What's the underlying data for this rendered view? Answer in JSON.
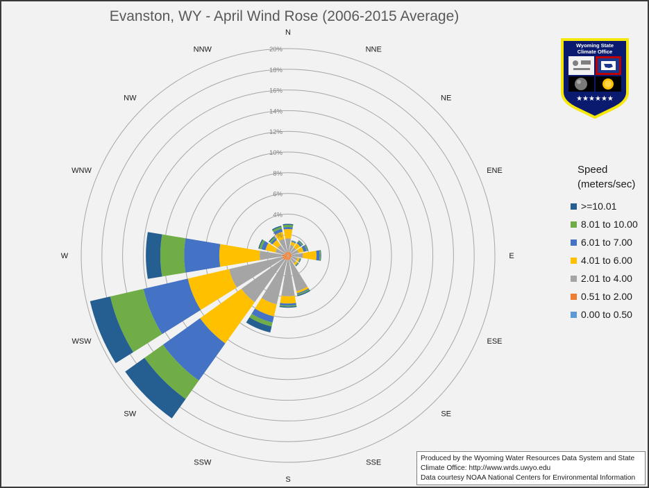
{
  "chart_data": {
    "type": "wind-rose",
    "title": "Evanston, WY - April Wind Rose (2006-2015 Average)",
    "directions": [
      "N",
      "NNE",
      "NE",
      "ENE",
      "E",
      "ESE",
      "SE",
      "SSE",
      "S",
      "SSW",
      "SW",
      "WSW",
      "W",
      "WNW",
      "NW",
      "NNW"
    ],
    "radial_ticks": [
      "0%",
      "2%",
      "4%",
      "6%",
      "8%",
      "10%",
      "12%",
      "14%",
      "16%",
      "18%",
      "20%"
    ],
    "rmax_percent": 20,
    "grid": true,
    "legend_position": "right",
    "legend_title": [
      "Speed",
      "(meters/sec)"
    ],
    "series": [
      {
        "name": "0.00 to 0.50",
        "color": "#5b9bd5",
        "values": [
          0.05,
          0.05,
          0.05,
          0.05,
          0.05,
          0.05,
          0.05,
          0.05,
          0.05,
          0.05,
          0.05,
          0.05,
          0.05,
          0.05,
          0.05,
          0.05
        ]
      },
      {
        "name": "0.51 to 2.00",
        "color": "#ed7d31",
        "values": [
          0.3,
          0.3,
          0.3,
          0.3,
          0.3,
          0.3,
          0.3,
          0.4,
          0.4,
          0.4,
          0.5,
          0.5,
          0.5,
          0.3,
          0.3,
          0.3
        ]
      },
      {
        "name": "2.01 to 4.00",
        "color": "#a5a5a5",
        "values": [
          1.3,
          0.7,
          0.6,
          0.7,
          1.1,
          0.6,
          0.6,
          3.1,
          3.5,
          4.4,
          5.0,
          5.3,
          2.2,
          0.9,
          0.9,
          1.3
        ]
      },
      {
        "name": "4.01 to 6.00",
        "color": "#ffc000",
        "values": [
          0.9,
          0.3,
          0.5,
          0.5,
          1.3,
          0.2,
          0.2,
          0.2,
          0.7,
          1.2,
          4.9,
          4.1,
          3.9,
          1.0,
          0.6,
          0.7
        ]
      },
      {
        "name": "6.01 to 7.00",
        "color": "#4472c4",
        "values": [
          0.2,
          0.05,
          0.2,
          0.3,
          0.3,
          0.05,
          0.05,
          0.1,
          0.2,
          0.6,
          4.4,
          4.4,
          3.4,
          0.4,
          0.2,
          0.3
        ]
      },
      {
        "name": "8.01 to 10.00",
        "color": "#70ad47",
        "values": [
          0.2,
          0.05,
          0.1,
          0.1,
          0.1,
          0.05,
          0.05,
          0.1,
          0.1,
          0.4,
          2.2,
          3.3,
          2.3,
          0.2,
          0.15,
          0.2
        ]
      },
      {
        "name": ">=10.01",
        "color": "#255e91",
        "values": [
          0.1,
          0.05,
          0.05,
          0.05,
          0.05,
          0.05,
          0.05,
          0.1,
          0.1,
          0.6,
          2.3,
          2.0,
          1.4,
          0.1,
          0.1,
          0.1
        ]
      }
    ]
  },
  "credits": [
    "Produced by the Wyoming Water Resources Data System and State",
    "Climate Office: http://www.wrds.uwyo.edu",
    "Data courtesy NOAA National Centers for Environmental Information"
  ],
  "logo": {
    "line1": "Wyoming State",
    "line2": "Climate Office",
    "stars": "★★★★★★",
    "colors": {
      "shield": "#0a1a6e",
      "border": "#f4e80a",
      "flag_blue": "#1c3a8c",
      "flag_red": "#c00000",
      "sun": "#ffc000"
    }
  }
}
